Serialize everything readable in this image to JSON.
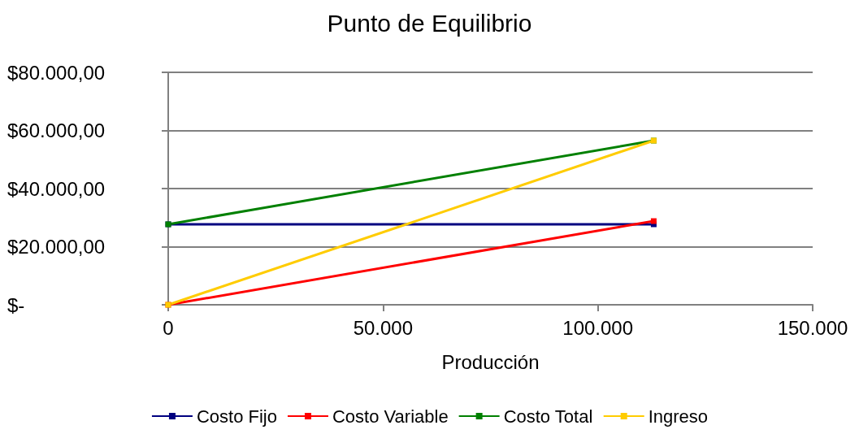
{
  "chart_data": {
    "type": "line",
    "title": "Punto de Equilibrio",
    "xlabel": "Producción",
    "x": [
      0,
      113000
    ],
    "series": [
      {
        "name": "Costo Fijo",
        "color": "#000080",
        "values": [
          27700,
          27700
        ]
      },
      {
        "name": "Costo Variable",
        "color": "#ff0000",
        "values": [
          0,
          28800
        ]
      },
      {
        "name": "Costo Total",
        "color": "#008000",
        "values": [
          27700,
          56500
        ]
      },
      {
        "name": "Ingreso",
        "color": "#ffcc00",
        "values": [
          0,
          56500
        ]
      }
    ],
    "xlim": [
      0,
      150000
    ],
    "xticks": [
      0,
      {
        "value": 50000,
        "label": "50.000"
      },
      {
        "value": 100000,
        "label": "100.000"
      },
      {
        "value": 150000,
        "label": "150.000"
      }
    ],
    "ylim": [
      0,
      80000
    ],
    "yticks": [
      {
        "value": 0,
        "label": "$-"
      },
      {
        "value": 20000,
        "label": "$20.000,00"
      },
      {
        "value": 40000,
        "label": "$40.000,00"
      },
      {
        "value": 60000,
        "label": "$60.000,00"
      },
      {
        "value": 80000,
        "label": "$80.000,00"
      }
    ],
    "grid": "y",
    "legend": "bottom",
    "marker": "square",
    "line_style": "solid"
  }
}
